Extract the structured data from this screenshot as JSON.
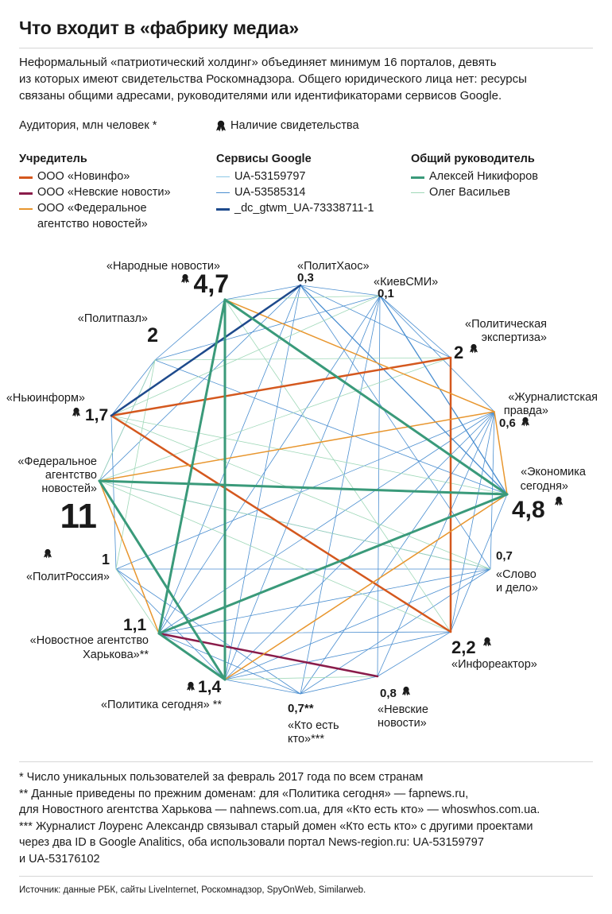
{
  "title": "Что входит в «фабрику медиа»",
  "intro": [
    "Неформальный «патриотический холдинг» объединяет минимум 16 порталов, девять",
    "из которых имеют свидетельства Роскомнадзора. Общего юридического лица нет: ресурсы",
    "связаны общими адресами, руководителями или идентификаторами сервисов Google."
  ],
  "legend": {
    "audience": "Аудитория, млн человек *",
    "license": "Наличие свидетельства",
    "founder": {
      "title": "Учредитель",
      "items": [
        {
          "label": "ООО «Новинфо»",
          "color": "#d4581e"
        },
        {
          "label": "ООО «Невские новости»",
          "color": "#8a1c4a"
        },
        {
          "label": "ООО «Федеральное",
          "label2": "агентство новостей»",
          "color": "#e8962e"
        }
      ]
    },
    "google": {
      "title": "Сервисы Google",
      "items": [
        {
          "label": "UA-53159797",
          "color": "#8ec8e6"
        },
        {
          "label": "UA-53585314",
          "color": "#4a8ed0"
        },
        {
          "label": "_dc_gtwm_UA-73338711-1",
          "color": "#1e4a8c"
        }
      ]
    },
    "manager": {
      "title": "Общий руководитель",
      "items": [
        {
          "label": "Алексей Никифоров",
          "color": "#3a9a7a"
        },
        {
          "label": "Олег Васильев",
          "color": "#9fd8b8"
        }
      ]
    }
  },
  "chart_data": {
    "type": "network",
    "nodes": [
      {
        "id": "narodnye",
        "name": "«Народные новости»",
        "value": "4,7",
        "license": true
      },
      {
        "id": "politkhaos",
        "name": "«ПолитХаос»",
        "value": "0,3",
        "license": false
      },
      {
        "id": "kievsmi",
        "name": "«КиевСМИ»",
        "value": "0,1",
        "license": false
      },
      {
        "id": "politexp",
        "name": "«Политическая",
        "name2": "экспертиза»",
        "value": "2",
        "license": true
      },
      {
        "id": "zhurnal",
        "name": "«Журналистская",
        "name2": "правда»",
        "value": "0,6",
        "license": true
      },
      {
        "id": "ekonomika",
        "name": "«Экономика",
        "name2": "сегодня»",
        "value": "4,8",
        "license": true
      },
      {
        "id": "slovo",
        "name": "«Слово",
        "name2": "и дело»",
        "value": "0,7",
        "license": false
      },
      {
        "id": "inforeaktor",
        "name": "«Инфореактор»",
        "value": "2,2",
        "license": true
      },
      {
        "id": "nevskie",
        "name": "«Невские",
        "name2": "новости»",
        "value": "0,8",
        "license": true
      },
      {
        "id": "ktoest",
        "name": "«Кто есть",
        "name2": "кто»***",
        "value": "0,7**",
        "license": false
      },
      {
        "id": "politika",
        "name": "«Политика сегодня» **",
        "value": "1,4",
        "license": true
      },
      {
        "id": "kharkov",
        "name": "«Новостное агентство",
        "name2": "Харькова»**",
        "value": "1,1",
        "license": false
      },
      {
        "id": "politrossiya",
        "name": "«ПолитРоссия»",
        "value": "1",
        "license": true
      },
      {
        "id": "fan",
        "name": "«Федеральное",
        "name2": "агентство",
        "name3": "новостей»",
        "value": "11",
        "license": false
      },
      {
        "id": "newinform",
        "name": "«Ньюинформ»",
        "value": "1,7",
        "license": true
      },
      {
        "id": "politpazl",
        "name": "«Политпазл»",
        "value": "2",
        "license": false
      }
    ],
    "links": [
      {
        "from": "politexp",
        "to": "newinform",
        "group": "ООО «Новинфо»"
      },
      {
        "from": "newinform",
        "to": "inforeaktor",
        "group": "ООО «Новинфо»"
      },
      {
        "from": "politexp",
        "to": "inforeaktor",
        "group": "ООО «Новинфо»"
      },
      {
        "from": "kharkov",
        "to": "nevskie",
        "group": "ООО «Невские новости»"
      },
      {
        "from": "narodnye",
        "to": "zhurnal",
        "group": "ООО «Федеральное агентство новостей»"
      },
      {
        "from": "narodnye",
        "to": "politika",
        "group": "ООО «Федеральное агентство новостей»"
      },
      {
        "from": "zhurnal",
        "to": "fan",
        "group": "ООО «Федеральное агентство новостей»"
      },
      {
        "from": "zhurnal",
        "to": "ekonomika",
        "group": "ООО «Федеральное агентство новостей»"
      },
      {
        "from": "fan",
        "to": "ekonomika",
        "group": "ООО «Федеральное агентство новостей»"
      },
      {
        "from": "fan",
        "to": "kharkov",
        "group": "ООО «Федеральное агентство новостей»"
      },
      {
        "from": "ekonomika",
        "to": "politika",
        "group": "ООО «Федеральное агентство новостей»"
      },
      {
        "from": "newinform",
        "to": "politkhaos",
        "group": "_dc_gtwm_UA-73338711-1"
      },
      {
        "from": "narodnye",
        "to": "ekonomika",
        "group": "Алексей Никифоров"
      },
      {
        "from": "narodnye",
        "to": "kharkov",
        "group": "Алексей Никифоров"
      },
      {
        "from": "fan",
        "to": "ekonomika",
        "group": "Алексей Никифоров"
      },
      {
        "from": "fan",
        "to": "politika",
        "group": "Алексей Никифоров"
      },
      {
        "from": "narodnye",
        "to": "politika",
        "group": "Алексей Никифоров"
      },
      {
        "from": "ekonomika",
        "to": "kharkov",
        "group": "Алексей Никифоров"
      },
      {
        "from": "kharkov",
        "to": "politika",
        "group": "Алексей Никифоров"
      }
    ]
  },
  "footnotes": [
    "* Число уникальных пользователей за февраль 2017 года по всем странам",
    "** Данные приведены по прежним доменам: для «Политика сегодня» — fapnews.ru,",
    "для Новостного агентства Харькова — nahnews.com.ua, для «Кто есть кто» — whoswhos.com.ua.",
    "*** Журналист Лоуренс Александр связывал старый домен «Кто есть кто» с другими проектами",
    "через два ID в Google Analitics, оба использовали портал News-region.ru: UA-53159797",
    "и UA-53176102"
  ],
  "source": "Источник: данные РБК, сайты LiveInternet, Роскомнадзор, SpyOnWeb, Similarweb."
}
